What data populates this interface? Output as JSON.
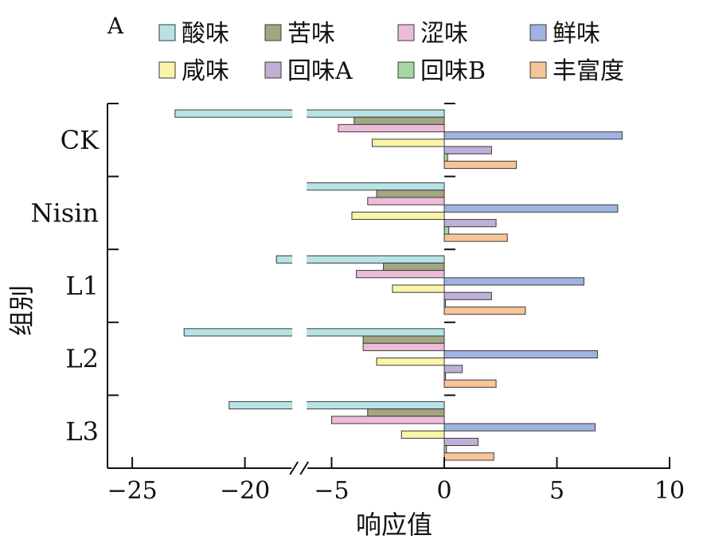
{
  "chart_data": {
    "type": "bar",
    "orientation": "horizontal",
    "panel_label": "A",
    "xlabel": "响应值",
    "ylabel": "组别",
    "xlim": [
      -25,
      10
    ],
    "axis_break": [
      -18,
      -6
    ],
    "xticks": [
      -25,
      -20,
      -5,
      0,
      5,
      10
    ],
    "xtick_labels": [
      "−25",
      "−20",
      "−5",
      "0",
      "5",
      "10"
    ],
    "categories": [
      "CK",
      "Nisin",
      "L1",
      "L2",
      "L3"
    ],
    "legend_position": "top",
    "series": [
      {
        "name": "酸味",
        "color": "#b7e3e6",
        "values": [
          -23.1,
          -8.0,
          -18.6,
          -22.7,
          -20.7
        ]
      },
      {
        "name": "苦味",
        "color": "#a3a681",
        "values": [
          -4.0,
          -3.0,
          -2.7,
          -3.6,
          -3.4
        ]
      },
      {
        "name": "涩味",
        "color": "#ecbcd8",
        "values": [
          -4.7,
          -3.4,
          -3.9,
          -3.6,
          -5.0
        ]
      },
      {
        "name": "鲜味",
        "color": "#9fb3e0",
        "values": [
          7.9,
          7.7,
          6.2,
          6.8,
          6.7
        ]
      },
      {
        "name": "咸味",
        "color": "#f9f4a8",
        "values": [
          -3.2,
          -4.1,
          -2.3,
          -3.0,
          -1.9
        ]
      },
      {
        "name": "回味A",
        "color": "#bfb0d8",
        "values": [
          2.1,
          2.3,
          2.1,
          0.8,
          1.5
        ]
      },
      {
        "name": "回味B",
        "color": "#a6d6a1",
        "values": [
          0.15,
          0.2,
          0.05,
          0.05,
          0.1
        ]
      },
      {
        "name": "丰富度",
        "color": "#f6c598",
        "values": [
          3.2,
          2.8,
          3.6,
          2.3,
          2.2
        ]
      }
    ]
  }
}
